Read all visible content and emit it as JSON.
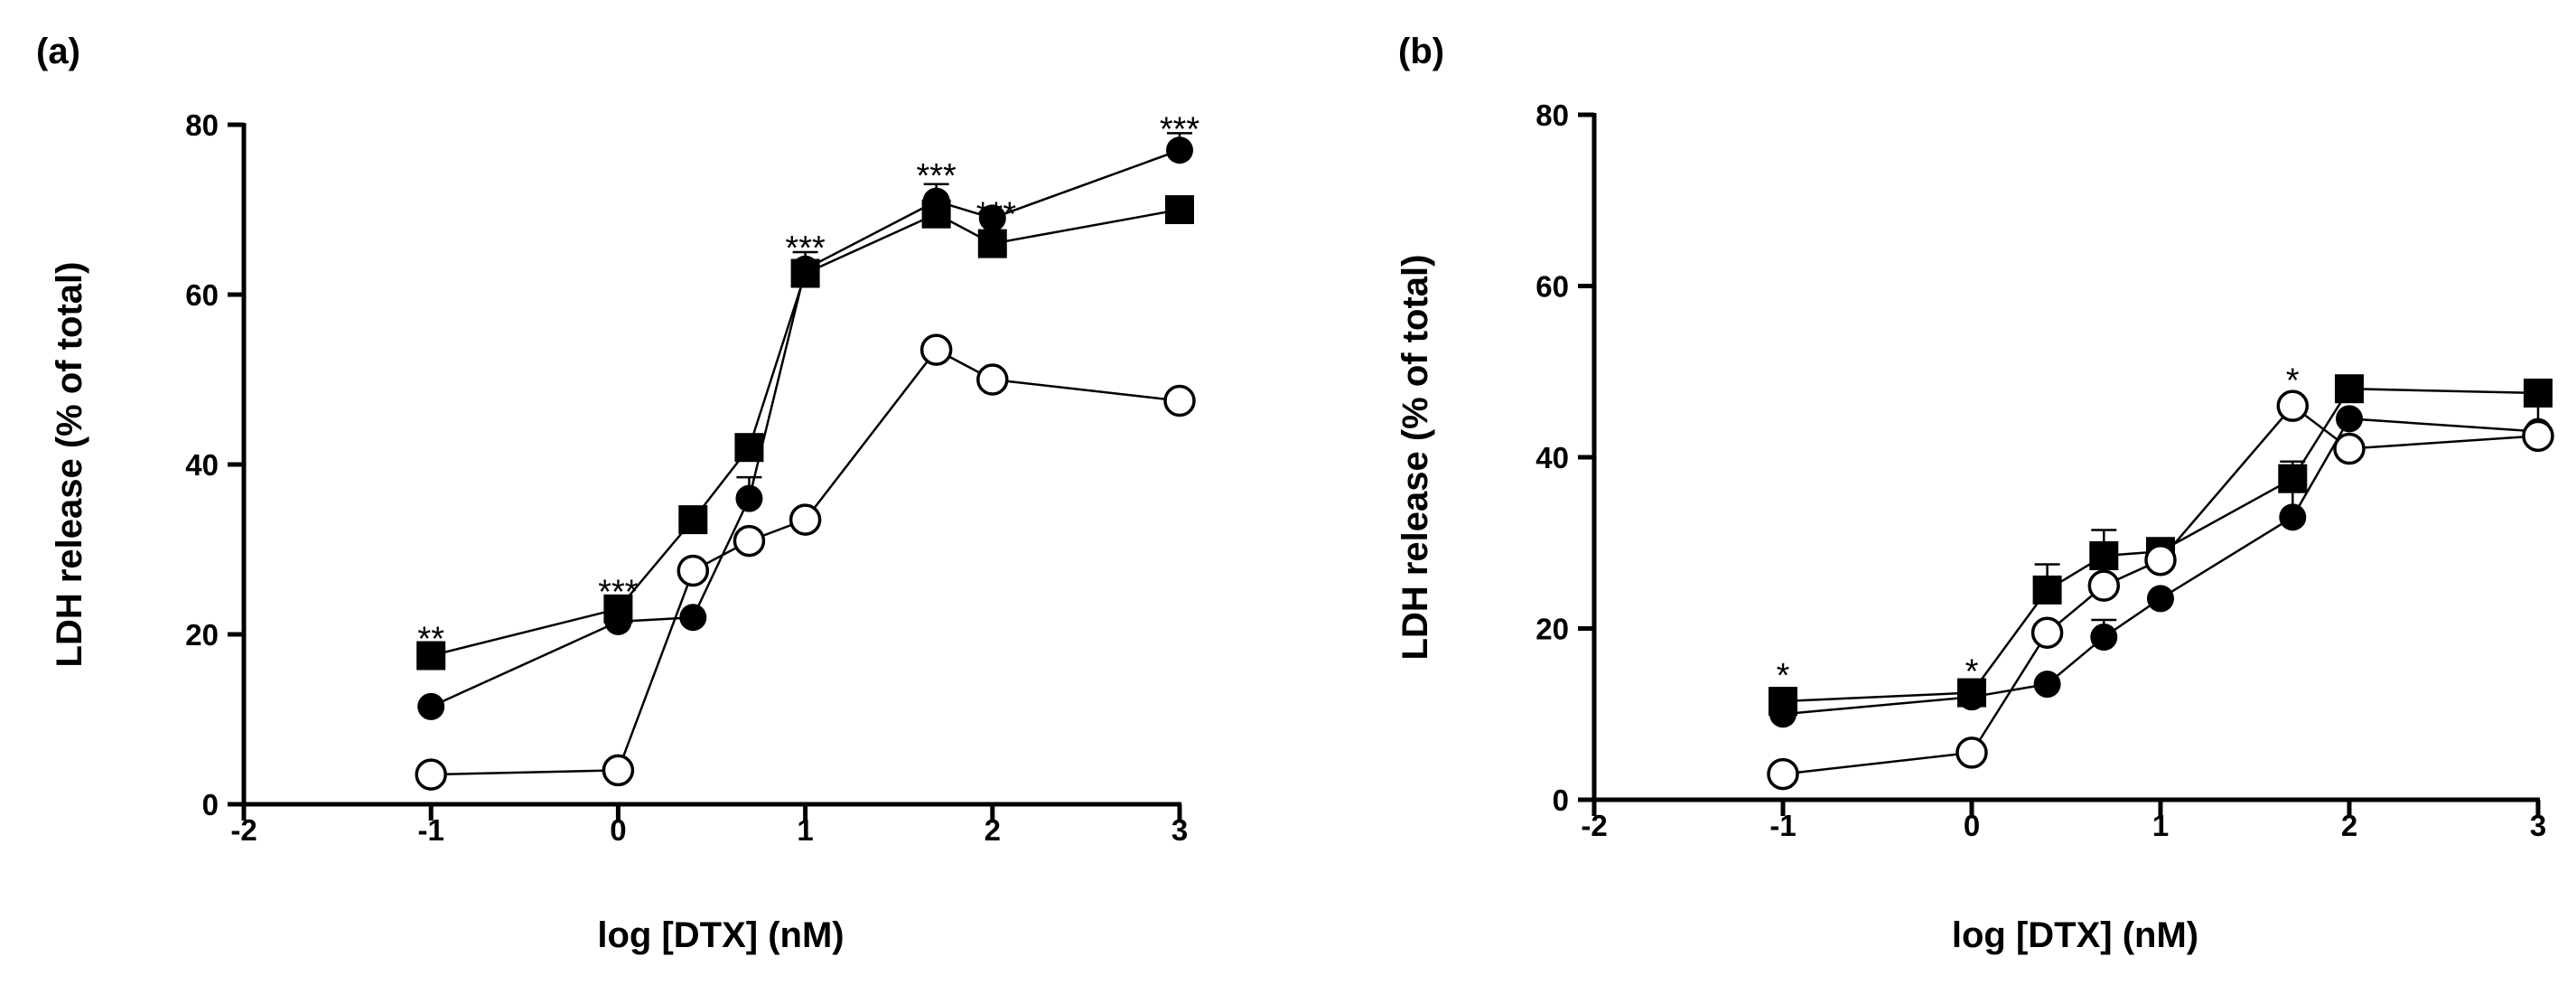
{
  "chart_data": [
    {
      "panel_label": "(a)",
      "type": "line",
      "xlabel": "log [DTX] (nM)",
      "ylabel": "LDH release (% of total)",
      "xlim": [
        -2,
        3
      ],
      "ylim": [
        0,
        80
      ],
      "x_ticks": [
        -2,
        -1,
        0,
        1,
        2,
        3
      ],
      "y_ticks": [
        0,
        20,
        40,
        60,
        80
      ],
      "x_tick_labels": [
        "-2",
        "-1",
        "0",
        "1",
        "2",
        "3"
      ],
      "y_tick_labels": [
        "0",
        "20",
        "40",
        "60",
        "80"
      ],
      "series": [
        {
          "marker": "square",
          "fill": "filled",
          "x": [
            -1,
            0,
            0.4,
            0.7,
            1,
            1.7,
            2,
            3
          ],
          "y": [
            17.5,
            23,
            33.5,
            42,
            62.5,
            69.5,
            66,
            70
          ],
          "err": [
            0,
            0,
            0,
            0,
            0,
            0,
            0,
            0
          ]
        },
        {
          "marker": "circle",
          "fill": "filled",
          "x": [
            -1,
            0,
            0.4,
            0.7,
            1,
            1.7,
            2,
            3
          ],
          "y": [
            11.5,
            21.5,
            22,
            36,
            63,
            71,
            69,
            77
          ],
          "err": [
            0,
            0,
            0,
            2.5,
            2,
            2,
            0,
            2
          ]
        },
        {
          "marker": "circle",
          "fill": "open",
          "x": [
            -1,
            0,
            0.4,
            0.7,
            1,
            1.7,
            2,
            3
          ],
          "y": [
            3.5,
            4,
            27.5,
            31,
            33.5,
            53.5,
            50,
            47.5
          ],
          "err": [
            0,
            0,
            0,
            0,
            0,
            0,
            0,
            0
          ]
        }
      ],
      "annotations": [
        {
          "text": "**",
          "x": -1,
          "y": 20.5
        },
        {
          "text": "***",
          "x": 0,
          "y": 26
        },
        {
          "text": "***",
          "x": 1,
          "y": 66.5
        },
        {
          "text": "***",
          "x": 1.7,
          "y": 75
        },
        {
          "text": "***",
          "x": 2.02,
          "y": 70.5
        },
        {
          "text": "***",
          "x": 3,
          "y": 80.5
        }
      ]
    },
    {
      "panel_label": "(b)",
      "type": "line",
      "xlabel": "log [DTX] (nM)",
      "ylabel": "LDH release (% of total)",
      "xlim": [
        -2,
        3
      ],
      "ylim": [
        0,
        80
      ],
      "x_ticks": [
        -2,
        -1,
        0,
        1,
        2,
        3
      ],
      "y_ticks": [
        0,
        20,
        40,
        60,
        80
      ],
      "x_tick_labels": [
        "-2",
        "-1",
        "0",
        "1",
        "2",
        "3"
      ],
      "y_tick_labels": [
        "0",
        "20",
        "40",
        "60",
        "80"
      ],
      "series": [
        {
          "marker": "square",
          "fill": "filled",
          "x": [
            -1,
            0,
            0.4,
            0.7,
            1,
            1.7,
            2,
            3
          ],
          "y": [
            11.5,
            12.5,
            24.5,
            28.5,
            29,
            37.5,
            48,
            47.5
          ],
          "err": [
            0,
            0,
            3,
            3,
            0,
            2,
            0,
            0
          ]
        },
        {
          "marker": "circle",
          "fill": "filled",
          "x": [
            -1,
            0,
            0.4,
            0.7,
            1,
            1.7,
            2,
            3
          ],
          "y": [
            10,
            12,
            13.5,
            19,
            23.5,
            33,
            44.5,
            43
          ],
          "err": [
            0,
            0,
            0,
            2,
            0,
            3.5,
            0,
            0
          ]
        },
        {
          "marker": "circle",
          "fill": "open",
          "x": [
            -1,
            0,
            0.4,
            0.7,
            1,
            1.7,
            2,
            3
          ],
          "y": [
            3,
            5.5,
            19.5,
            25,
            28,
            46,
            41,
            42.5
          ],
          "err": [
            0,
            0,
            0,
            0,
            0,
            0,
            0,
            4
          ]
        }
      ],
      "annotations": [
        {
          "text": "*",
          "x": -1,
          "y": 15.5
        },
        {
          "text": "*",
          "x": 0,
          "y": 16
        },
        {
          "text": "*",
          "x": 1.7,
          "y": 50
        }
      ]
    }
  ]
}
